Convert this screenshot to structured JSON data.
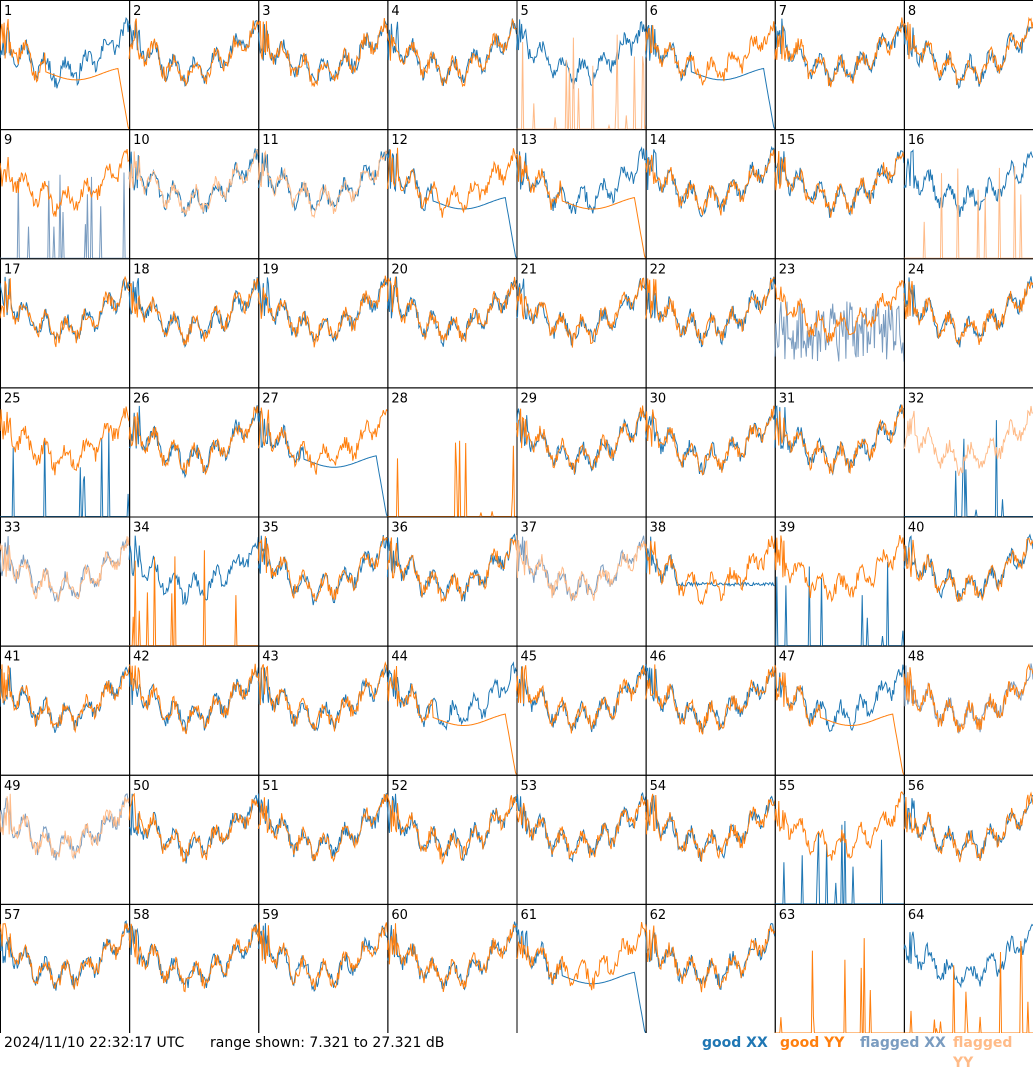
{
  "footer": {
    "timestamp": "2024/11/10 22:32:17 UTC",
    "range": "range shown: 7.321 to 27.321 dB"
  },
  "legend": {
    "good_xx": "good XX",
    "good_yy": "good YY",
    "flagged_xx": "flagged XX",
    "flagged_yy": "flagged YY"
  },
  "colors": {
    "good_xx": "#1f77b4",
    "good_yy": "#ff7f0e",
    "flagged_xx": "#7a9cc0",
    "flagged_yy": "#ffbb88"
  },
  "chart_data": {
    "type": "line",
    "ylim": [
      7.321,
      27.321
    ],
    "grid_rows": 8,
    "grid_cols": 8,
    "series_names": [
      "good XX",
      "good YY",
      "flagged XX",
      "flagged YY"
    ],
    "panels": [
      {
        "id": 1,
        "xx": "good",
        "yy": "good",
        "xx_shape": "normal",
        "yy_shape": "rolloff"
      },
      {
        "id": 2,
        "xx": "good",
        "yy": "good",
        "xx_shape": "normal",
        "yy_shape": "normal"
      },
      {
        "id": 3,
        "xx": "good",
        "yy": "good",
        "xx_shape": "normal",
        "yy_shape": "normal"
      },
      {
        "id": 4,
        "xx": "good",
        "yy": "good",
        "xx_shape": "normal",
        "yy_shape": "normal"
      },
      {
        "id": 5,
        "xx": "good",
        "yy": "flagged",
        "xx_shape": "normal",
        "yy_shape": "spikes"
      },
      {
        "id": 6,
        "xx": "good",
        "yy": "good",
        "xx_shape": "rolloff",
        "yy_shape": "normal"
      },
      {
        "id": 7,
        "xx": "good",
        "yy": "good",
        "xx_shape": "normal",
        "yy_shape": "normal"
      },
      {
        "id": 8,
        "xx": "good",
        "yy": "good",
        "xx_shape": "normal",
        "yy_shape": "normal"
      },
      {
        "id": 9,
        "xx": "flagged",
        "yy": "good",
        "xx_shape": "spikes",
        "yy_shape": "normal"
      },
      {
        "id": 10,
        "xx": "good",
        "yy": "flagged",
        "xx_shape": "normal",
        "yy_shape": "normal"
      },
      {
        "id": 11,
        "xx": "good",
        "yy": "flagged",
        "xx_shape": "normal",
        "yy_shape": "normal"
      },
      {
        "id": 12,
        "xx": "good",
        "yy": "good",
        "xx_shape": "rolloff",
        "yy_shape": "normal"
      },
      {
        "id": 13,
        "xx": "good",
        "yy": "good",
        "xx_shape": "normal",
        "yy_shape": "rolloff"
      },
      {
        "id": 14,
        "xx": "good",
        "yy": "good",
        "xx_shape": "normal",
        "yy_shape": "normal"
      },
      {
        "id": 15,
        "xx": "good",
        "yy": "good",
        "xx_shape": "normal",
        "yy_shape": "normal"
      },
      {
        "id": 16,
        "xx": "good",
        "yy": "flagged",
        "xx_shape": "normal",
        "yy_shape": "spikes"
      },
      {
        "id": 17,
        "xx": "good",
        "yy": "good",
        "xx_shape": "normal",
        "yy_shape": "normal"
      },
      {
        "id": 18,
        "xx": "good",
        "yy": "good",
        "xx_shape": "normal",
        "yy_shape": "normal"
      },
      {
        "id": 19,
        "xx": "good",
        "yy": "good",
        "xx_shape": "normal",
        "yy_shape": "normal"
      },
      {
        "id": 20,
        "xx": "good",
        "yy": "good",
        "xx_shape": "normal",
        "yy_shape": "normal"
      },
      {
        "id": 21,
        "xx": "good",
        "yy": "good",
        "xx_shape": "normal",
        "yy_shape": "normal"
      },
      {
        "id": 22,
        "xx": "good",
        "yy": "good",
        "xx_shape": "normal",
        "yy_shape": "normal"
      },
      {
        "id": 23,
        "xx": "flagged",
        "yy": "good",
        "xx_shape": "noisy",
        "yy_shape": "normal"
      },
      {
        "id": 24,
        "xx": "good",
        "yy": "good",
        "xx_shape": "normal",
        "yy_shape": "normal"
      },
      {
        "id": 25,
        "xx": "good",
        "yy": "good",
        "xx_shape": "spikes",
        "yy_shape": "normal"
      },
      {
        "id": 26,
        "xx": "good",
        "yy": "good",
        "xx_shape": "normal",
        "yy_shape": "normal"
      },
      {
        "id": 27,
        "xx": "good",
        "yy": "good",
        "xx_shape": "rolloff",
        "yy_shape": "normal"
      },
      {
        "id": 28,
        "xx": "none",
        "yy": "good",
        "xx_shape": "none",
        "yy_shape": "spikes"
      },
      {
        "id": 29,
        "xx": "good",
        "yy": "good",
        "xx_shape": "normal",
        "yy_shape": "normal"
      },
      {
        "id": 30,
        "xx": "good",
        "yy": "good",
        "xx_shape": "normal",
        "yy_shape": "normal"
      },
      {
        "id": 31,
        "xx": "good",
        "yy": "good",
        "xx_shape": "normal",
        "yy_shape": "normal"
      },
      {
        "id": 32,
        "xx": "good",
        "yy": "flagged",
        "xx_shape": "spikes",
        "yy_shape": "normal"
      },
      {
        "id": 33,
        "xx": "flagged",
        "yy": "flagged",
        "xx_shape": "normal",
        "yy_shape": "normal"
      },
      {
        "id": 34,
        "xx": "good",
        "yy": "good",
        "xx_shape": "normal",
        "yy_shape": "spikes"
      },
      {
        "id": 35,
        "xx": "good",
        "yy": "good",
        "xx_shape": "normal",
        "yy_shape": "normal"
      },
      {
        "id": 36,
        "xx": "good",
        "yy": "good",
        "xx_shape": "normal",
        "yy_shape": "normal"
      },
      {
        "id": 37,
        "xx": "flagged",
        "yy": "flagged",
        "xx_shape": "normal",
        "yy_shape": "normal"
      },
      {
        "id": 38,
        "xx": "good",
        "yy": "good",
        "xx_shape": "flat",
        "yy_shape": "normal"
      },
      {
        "id": 39,
        "xx": "good",
        "yy": "good",
        "xx_shape": "spikes",
        "yy_shape": "normal"
      },
      {
        "id": 40,
        "xx": "good",
        "yy": "good",
        "xx_shape": "normal",
        "yy_shape": "normal"
      },
      {
        "id": 41,
        "xx": "good",
        "yy": "good",
        "xx_shape": "normal",
        "yy_shape": "normal"
      },
      {
        "id": 42,
        "xx": "good",
        "yy": "good",
        "xx_shape": "normal",
        "yy_shape": "normal"
      },
      {
        "id": 43,
        "xx": "good",
        "yy": "good",
        "xx_shape": "normal",
        "yy_shape": "normal"
      },
      {
        "id": 44,
        "xx": "good",
        "yy": "good",
        "xx_shape": "normal",
        "yy_shape": "rolloff"
      },
      {
        "id": 45,
        "xx": "good",
        "yy": "good",
        "xx_shape": "normal",
        "yy_shape": "normal"
      },
      {
        "id": 46,
        "xx": "good",
        "yy": "good",
        "xx_shape": "normal",
        "yy_shape": "normal"
      },
      {
        "id": 47,
        "xx": "good",
        "yy": "good",
        "xx_shape": "normal",
        "yy_shape": "rolloff"
      },
      {
        "id": 48,
        "xx": "flagged",
        "yy": "good",
        "xx_shape": "normal",
        "yy_shape": "normal"
      },
      {
        "id": 49,
        "xx": "flagged",
        "yy": "flagged",
        "xx_shape": "normal",
        "yy_shape": "normal"
      },
      {
        "id": 50,
        "xx": "good",
        "yy": "good",
        "xx_shape": "normal",
        "yy_shape": "normal"
      },
      {
        "id": 51,
        "xx": "good",
        "yy": "good",
        "xx_shape": "normal",
        "yy_shape": "normal"
      },
      {
        "id": 52,
        "xx": "good",
        "yy": "good",
        "xx_shape": "normal",
        "yy_shape": "normal"
      },
      {
        "id": 53,
        "xx": "good",
        "yy": "good",
        "xx_shape": "normal",
        "yy_shape": "normal"
      },
      {
        "id": 54,
        "xx": "good",
        "yy": "good",
        "xx_shape": "normal",
        "yy_shape": "normal"
      },
      {
        "id": 55,
        "xx": "good",
        "yy": "good",
        "xx_shape": "spikes",
        "yy_shape": "normal"
      },
      {
        "id": 56,
        "xx": "good",
        "yy": "good",
        "xx_shape": "normal",
        "yy_shape": "normal"
      },
      {
        "id": 57,
        "xx": "good",
        "yy": "good",
        "xx_shape": "normal",
        "yy_shape": "normal"
      },
      {
        "id": 58,
        "xx": "good",
        "yy": "good",
        "xx_shape": "normal",
        "yy_shape": "normal"
      },
      {
        "id": 59,
        "xx": "good",
        "yy": "good",
        "xx_shape": "normal",
        "yy_shape": "normal"
      },
      {
        "id": 60,
        "xx": "good",
        "yy": "good",
        "xx_shape": "normal",
        "yy_shape": "normal"
      },
      {
        "id": 61,
        "xx": "good",
        "yy": "good",
        "xx_shape": "rolloff",
        "yy_shape": "normal"
      },
      {
        "id": 62,
        "xx": "good",
        "yy": "good",
        "xx_shape": "normal",
        "yy_shape": "normal"
      },
      {
        "id": 63,
        "xx": "none",
        "yy": "good",
        "xx_shape": "none",
        "yy_shape": "spikes"
      },
      {
        "id": 64,
        "xx": "good",
        "yy": "good",
        "xx_shape": "normal",
        "yy_shape": "spikes"
      }
    ]
  }
}
